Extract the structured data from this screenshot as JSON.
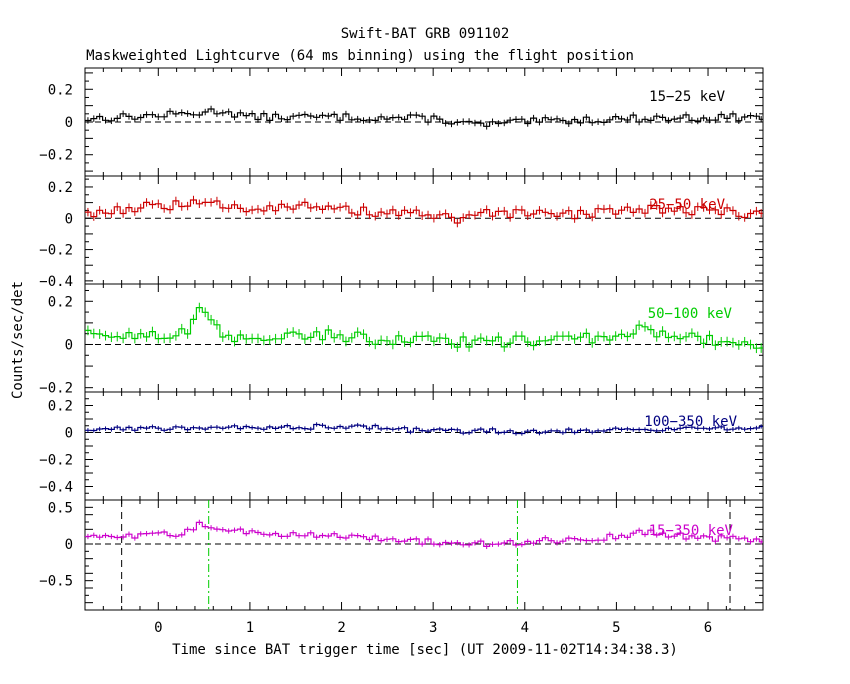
{
  "title": "Swift-BAT GRB 091102",
  "subtitle": "Maskweighted Lightcurve (64 ms binning) using the flight position",
  "xlabel": "Time since BAT trigger time [sec] (UT 2009-11-02T14:34:38.3)",
  "ylabel": "Counts/sec/det",
  "colors": {
    "frame": "#000000",
    "dashed": "#000000",
    "green_marker": "#00cc00"
  },
  "chart_data": [
    {
      "type": "line",
      "series": [
        {
          "name": "15−25 keV",
          "color": "#000000",
          "noise": 0.022,
          "baseline": [
            [
              -0.8,
              0.02
            ],
            [
              0,
              0.04
            ],
            [
              0.3,
              0.05
            ],
            [
              0.7,
              0.07
            ],
            [
              1.0,
              0.03
            ],
            [
              2.0,
              0.03
            ],
            [
              3.0,
              0.02
            ],
            [
              3.5,
              -0.02
            ],
            [
              4.0,
              0.0
            ],
            [
              5.0,
              0.02
            ],
            [
              6.6,
              0.03
            ]
          ]
        }
      ],
      "xlim": [
        -0.8,
        6.6
      ],
      "ylim": [
        -0.33,
        0.33
      ],
      "yticks": [
        0.2,
        0,
        -0.2
      ],
      "ytick_labels": [
        "0.2",
        "0",
        "−0.2"
      ],
      "label": "15−25 keV"
    },
    {
      "type": "line",
      "series": [
        {
          "name": "25−50 keV",
          "color": "#cc0000",
          "noise": 0.03,
          "baseline": [
            [
              -0.8,
              0.03
            ],
            [
              0,
              0.08
            ],
            [
              0.5,
              0.09
            ],
            [
              1.0,
              0.07
            ],
            [
              1.5,
              0.08
            ],
            [
              2.0,
              0.05
            ],
            [
              3.0,
              0.02
            ],
            [
              3.3,
              -0.02
            ],
            [
              3.6,
              0.03
            ],
            [
              4.5,
              0.02
            ],
            [
              5.2,
              0.06
            ],
            [
              6.0,
              0.05
            ],
            [
              6.6,
              0.02
            ]
          ]
        }
      ],
      "xlim": [
        -0.8,
        6.6
      ],
      "ylim": [
        -0.42,
        0.27
      ],
      "yticks": [
        0.2,
        0,
        -0.2,
        -0.4
      ],
      "ytick_labels": [
        "0.2",
        "0",
        "−0.2",
        "−0.4"
      ],
      "label": "25−50 keV"
    },
    {
      "type": "line",
      "series": [
        {
          "name": "50−100 keV",
          "color": "#00cc00",
          "noise": 0.025,
          "baseline": [
            [
              -0.8,
              0.04
            ],
            [
              0.3,
              0.05
            ],
            [
              0.45,
              0.15
            ],
            [
              0.6,
              0.1
            ],
            [
              0.75,
              0.02
            ],
            [
              1.5,
              0.05
            ],
            [
              2.0,
              0.04
            ],
            [
              2.5,
              0.02
            ],
            [
              3.5,
              0.01
            ],
            [
              4.5,
              0.02
            ],
            [
              5.0,
              0.04
            ],
            [
              5.3,
              0.07
            ],
            [
              6.0,
              0.02
            ],
            [
              6.6,
              0.0
            ]
          ]
        }
      ],
      "xlim": [
        -0.8,
        6.6
      ],
      "ylim": [
        -0.22,
        0.28
      ],
      "yticks": [
        0.2,
        0,
        -0.2
      ],
      "ytick_labels": [
        "0.2",
        "0",
        "−0.2"
      ],
      "label": "50−100 keV"
    },
    {
      "type": "line",
      "series": [
        {
          "name": "100−350 keV",
          "color": "#000080",
          "noise": 0.018,
          "baseline": [
            [
              -0.8,
              0.02
            ],
            [
              0.5,
              0.04
            ],
            [
              1.0,
              0.03
            ],
            [
              2.0,
              0.05
            ],
            [
              3.0,
              0.01
            ],
            [
              4.0,
              0.01
            ],
            [
              5.0,
              0.02
            ],
            [
              6.6,
              0.04
            ]
          ]
        }
      ],
      "xlim": [
        -0.8,
        6.6
      ],
      "ylim": [
        -0.5,
        0.3
      ],
      "yticks": [
        0.2,
        0,
        -0.2,
        -0.4
      ],
      "ytick_labels": [
        "0.2",
        "0",
        "−0.2",
        "−0.4"
      ],
      "label": "100−350 keV"
    },
    {
      "type": "line",
      "series": [
        {
          "name": "15−350 keV",
          "color": "#cc00cc",
          "noise": 0.04,
          "baseline": [
            [
              -0.8,
              0.08
            ],
            [
              0,
              0.12
            ],
            [
              0.3,
              0.15
            ],
            [
              0.45,
              0.28
            ],
            [
              0.6,
              0.22
            ],
            [
              1.0,
              0.15
            ],
            [
              2.0,
              0.12
            ],
            [
              2.5,
              0.06
            ],
            [
              3.5,
              0.0
            ],
            [
              4.0,
              0.03
            ],
            [
              5.0,
              0.1
            ],
            [
              5.3,
              0.16
            ],
            [
              6.0,
              0.08
            ],
            [
              6.6,
              0.06
            ]
          ]
        }
      ],
      "xlim": [
        -0.8,
        6.6
      ],
      "ylim": [
        -0.9,
        0.6
      ],
      "yticks": [
        0.5,
        0,
        -0.5
      ],
      "ytick_labels": [
        "0.5",
        "0",
        "−0.5"
      ],
      "label": "15−350 keV",
      "vlines": [
        {
          "x": -0.4,
          "style": "dashed",
          "color": "#000000"
        },
        {
          "x": 0.55,
          "style": "dashdot",
          "color": "#00cc00"
        },
        {
          "x": 3.92,
          "style": "dashdot",
          "color": "#00cc00"
        },
        {
          "x": 6.24,
          "style": "dashed",
          "color": "#000000"
        }
      ]
    }
  ],
  "xaxis": {
    "ticks": [
      0,
      1,
      2,
      3,
      4,
      5,
      6
    ],
    "tick_labels": [
      "0",
      "1",
      "2",
      "3",
      "4",
      "5",
      "6"
    ],
    "minor_step": 0.2
  },
  "binning_sec": 0.064
}
